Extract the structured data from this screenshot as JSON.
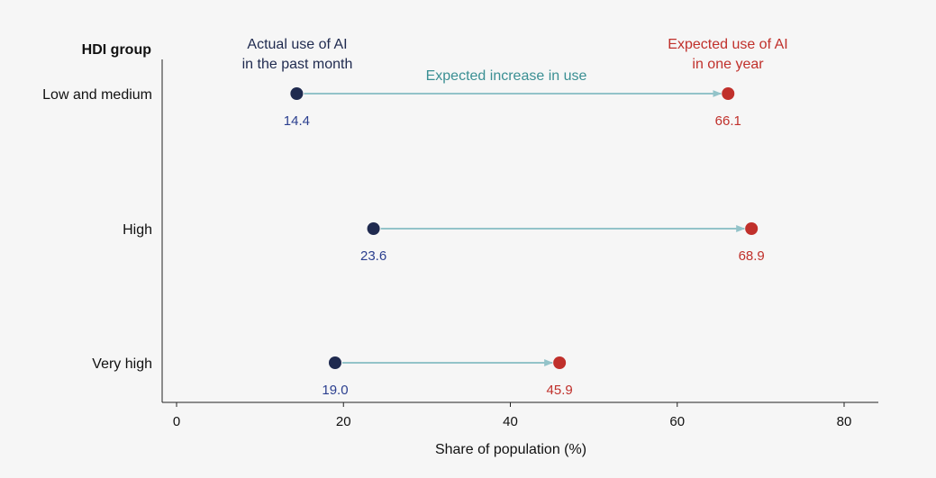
{
  "chart_data": {
    "type": "dumbbell",
    "title": "",
    "ylabel": "HDI group",
    "xlabel": "Share of population (%)",
    "xlim": [
      0,
      80
    ],
    "xticks": [
      0,
      20,
      40,
      60,
      80
    ],
    "grid": false,
    "categories": [
      "Low and medium",
      "High",
      "Very high"
    ],
    "series": [
      {
        "name": "Actual use of AI in the past month",
        "values": [
          14.4,
          23.6,
          19.0
        ],
        "color": "#1f2a4f"
      },
      {
        "name": "Expected use of AI in one year",
        "values": [
          66.1,
          68.9,
          45.9
        ],
        "color": "#c0302b"
      }
    ],
    "value_labels_start": [
      "14.4",
      "23.6",
      "19.0"
    ],
    "value_labels_end": [
      "66.1",
      "68.9",
      "45.9"
    ],
    "legend": {
      "start_line1": "Actual use of AI",
      "start_line2": "in the past month",
      "end_line1": "Expected use of AI",
      "end_line2": "in one year",
      "arrow_label": "Expected increase in use"
    },
    "colors": {
      "start_dot": "#1f2a4f",
      "start_label": "#2b3f8f",
      "end": "#c0302b",
      "arrow": "#93c3c9",
      "arrow_label": "#3a8f93",
      "axis": "#222222"
    }
  }
}
